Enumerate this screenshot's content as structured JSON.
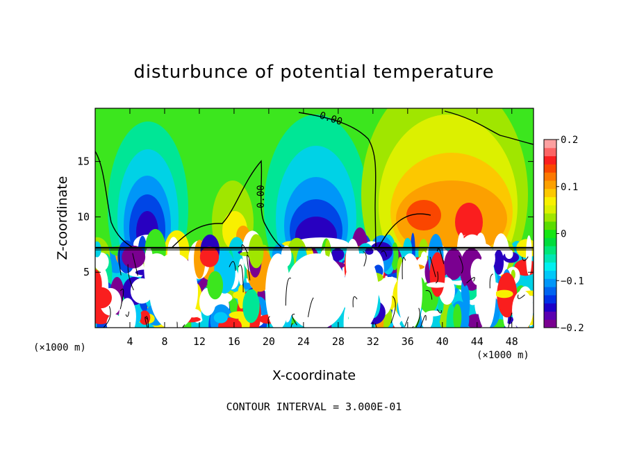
{
  "chart_data": {
    "type": "heatmap",
    "title": "disturbunce of potential temperature",
    "xlabel": "X-coordinate",
    "ylabel": "Z-coordinate",
    "x_unit": "(×1000 m)",
    "x_unit_right": "(×1000 m)",
    "xlim": [
      0,
      50.5
    ],
    "ylim": [
      0,
      19.8
    ],
    "x_ticks": [
      4,
      8,
      12,
      16,
      20,
      24,
      28,
      32,
      36,
      40,
      44,
      48
    ],
    "y_ticks": [
      5,
      10,
      15
    ],
    "colorbar": {
      "range": [
        -0.2,
        0.2
      ],
      "ticks": [
        {
          "value": 0.2,
          "label": "0.2"
        },
        {
          "value": 0.1,
          "label": "0.1"
        },
        {
          "value": 0,
          "label": "0"
        },
        {
          "value": -0.1,
          "label": "−0.1"
        },
        {
          "value": -0.2,
          "label": "−0.2"
        }
      ],
      "colors": [
        "#7a0090",
        "#5a00b0",
        "#1c00c8",
        "#0030e6",
        "#0064f0",
        "#0096f8",
        "#00c8f8",
        "#00f0f0",
        "#00e6b4",
        "#00e678",
        "#00dc3c",
        "#14e614",
        "#5adc00",
        "#a0e600",
        "#dcf000",
        "#f8f000",
        "#fcc800",
        "#fca000",
        "#fc7800",
        "#fa4600",
        "#fa1e1e",
        "#fc6464",
        "#fca0a0"
      ]
    },
    "contour_labels": [
      {
        "text": "0.00",
        "x": 27.8,
        "z": 18.5
      },
      {
        "text": "0.00",
        "x": 18.8,
        "z": 12.0
      }
    ],
    "features": [
      {
        "kind": "negative_anomaly",
        "x_center": 5.9,
        "z_center": 10.5,
        "peak": -0.2
      },
      {
        "kind": "negative_anomaly",
        "x_center": 25.5,
        "z_center": 10.0,
        "peak": -0.2
      },
      {
        "kind": "positive_anomaly",
        "x_center": 38.0,
        "z_center": 11.0,
        "peak": 0.15
      },
      {
        "kind": "positive_anomaly",
        "x_center": 43.0,
        "z_center": 10.0,
        "peak": 0.16
      },
      {
        "kind": "positive_anomaly",
        "x_center": 16.0,
        "z_center": 9.0,
        "peak": 0.1
      }
    ],
    "interface_height": 7.2,
    "footer": "CONTOUR INTERVAL = 3.000E-01"
  }
}
